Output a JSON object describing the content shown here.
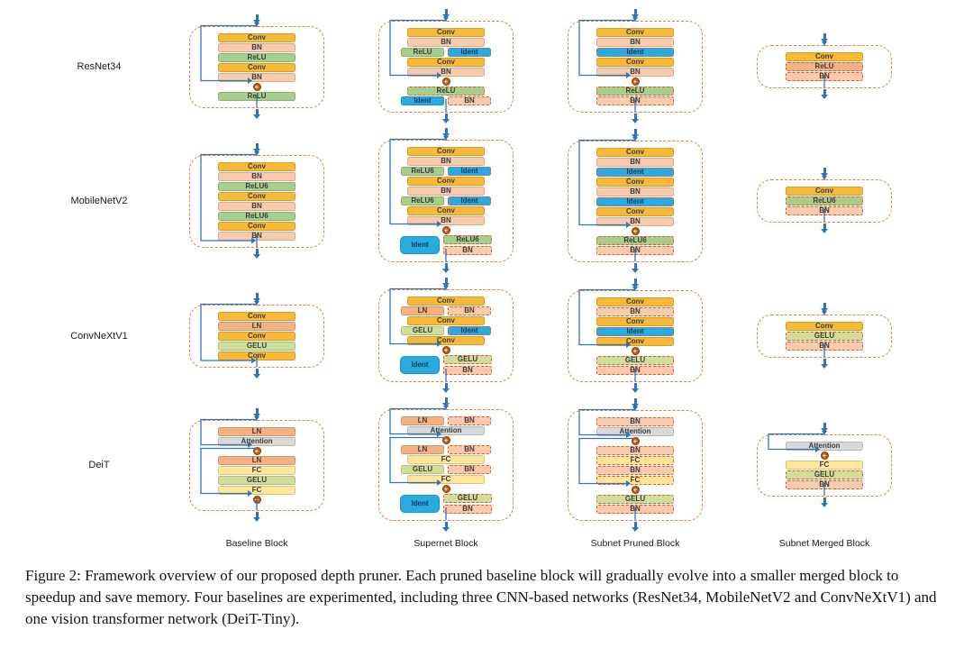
{
  "icons": {
    "plus": "+"
  },
  "colors": {
    "conv": "#F8BA36",
    "bn": "#F8CBAD",
    "relu": "#A6CE8D",
    "relu6": "#A6CE8D",
    "gelu": "#CFDE9B",
    "ln": "#F4B183",
    "fc": "#FFE699",
    "attn": "#D9D9D9",
    "ident": "#29ABE2",
    "container_border": "#ED7D31",
    "dashed_border": "#E2582C",
    "arrow": "#2E75B6",
    "skip": "#2E75B6",
    "add_fill": "#C55A11",
    "add_border": "#7F3E00"
  },
  "figure": {
    "rows": [
      {
        "label": "ResNet34",
        "blocks": [
          {
            "items": [
              {
                "t": "b",
                "l": "Conv",
                "c": "conv"
              },
              {
                "t": "b",
                "l": "BN",
                "c": "bn"
              },
              {
                "t": "b",
                "l": "ReLU",
                "c": "relu"
              },
              {
                "t": "b",
                "l": "Conv",
                "c": "conv"
              },
              {
                "t": "b",
                "l": "BN",
                "c": "bn"
              },
              {
                "t": "a"
              },
              {
                "t": "b",
                "l": "ReLU",
                "c": "relu"
              }
            ],
            "skips": [
              {
                "f": 0,
                "t": 5
              }
            ]
          },
          {
            "items": [
              {
                "t": "b",
                "l": "Conv",
                "c": "conv"
              },
              {
                "t": "b",
                "l": "BN",
                "c": "bn"
              },
              {
                "t": "p",
                "a": {
                  "l": "ReLU",
                  "c": "relu"
                },
                "b": {
                  "l": "Ident",
                  "c": "ident",
                  "d": 1
                }
              },
              {
                "t": "b",
                "l": "Conv",
                "c": "conv"
              },
              {
                "t": "b",
                "l": "BN",
                "c": "bn"
              },
              {
                "t": "a"
              },
              {
                "t": "b",
                "l": "ReLU",
                "c": "relu",
                "d": 1
              },
              {
                "t": "p",
                "a": {
                  "l": "Ident",
                  "c": "ident"
                },
                "b": {
                  "l": "BN",
                  "c": "bn",
                  "d": 1
                }
              }
            ],
            "skips": [
              {
                "f": 0,
                "t": 5
              }
            ]
          },
          {
            "items": [
              {
                "t": "b",
                "l": "Conv",
                "c": "conv"
              },
              {
                "t": "b",
                "l": "BN",
                "c": "bn"
              },
              {
                "t": "b",
                "l": "Ident",
                "c": "ident",
                "d": 1
              },
              {
                "t": "b",
                "l": "Conv",
                "c": "conv"
              },
              {
                "t": "b",
                "l": "BN",
                "c": "bn"
              },
              {
                "t": "a"
              },
              {
                "t": "b",
                "l": "ReLU",
                "c": "relu",
                "d": 1
              },
              {
                "t": "b",
                "l": "BN",
                "c": "bn",
                "d": 1
              }
            ],
            "skips": [
              {
                "f": 0,
                "t": 5
              }
            ]
          },
          {
            "items": [
              {
                "t": "b",
                "l": "Conv",
                "c": "conv"
              },
              {
                "t": "b",
                "l": "ReLU",
                "c": "ln",
                "d": 1
              },
              {
                "t": "b",
                "l": "BN",
                "c": "bn",
                "d": 1
              }
            ],
            "skips": []
          }
        ]
      },
      {
        "label": "MobileNetV2",
        "blocks": [
          {
            "items": [
              {
                "t": "b",
                "l": "Conv",
                "c": "conv"
              },
              {
                "t": "b",
                "l": "BN",
                "c": "bn"
              },
              {
                "t": "b",
                "l": "ReLU6",
                "c": "relu6"
              },
              {
                "t": "b",
                "l": "Conv",
                "c": "conv"
              },
              {
                "t": "b",
                "l": "BN",
                "c": "bn"
              },
              {
                "t": "b",
                "l": "ReLU6",
                "c": "relu6"
              },
              {
                "t": "b",
                "l": "Conv",
                "c": "conv"
              },
              {
                "t": "b",
                "l": "BN",
                "c": "bn"
              }
            ],
            "skips": [
              {
                "f": 0,
                "t": "out"
              }
            ]
          },
          {
            "items": [
              {
                "t": "b",
                "l": "Conv",
                "c": "conv"
              },
              {
                "t": "b",
                "l": "BN",
                "c": "bn"
              },
              {
                "t": "p",
                "a": {
                  "l": "ReLU6",
                  "c": "relu6"
                },
                "b": {
                  "l": "Ident",
                  "c": "ident",
                  "d": 1
                }
              },
              {
                "t": "b",
                "l": "Conv",
                "c": "conv"
              },
              {
                "t": "b",
                "l": "BN",
                "c": "bn"
              },
              {
                "t": "p",
                "a": {
                  "l": "ReLU6",
                  "c": "relu6"
                },
                "b": {
                  "l": "Ident",
                  "c": "ident",
                  "d": 1
                }
              },
              {
                "t": "b",
                "l": "Conv",
                "c": "conv"
              },
              {
                "t": "b",
                "l": "BN",
                "c": "bn"
              },
              {
                "t": "a"
              },
              {
                "t": "g",
                "a": {
                  "l": "Ident",
                  "c": "ident"
                },
                "b": [
                  {
                    "l": "ReLU6",
                    "c": "relu6",
                    "d": 1
                  },
                  {
                    "l": "BN",
                    "c": "bn",
                    "d": 1
                  }
                ]
              }
            ],
            "skips": [
              {
                "f": 0,
                "t": 8
              }
            ]
          },
          {
            "items": [
              {
                "t": "b",
                "l": "Conv",
                "c": "conv"
              },
              {
                "t": "b",
                "l": "BN",
                "c": "bn"
              },
              {
                "t": "b",
                "l": "Ident",
                "c": "ident",
                "d": 1
              },
              {
                "t": "b",
                "l": "Conv",
                "c": "conv"
              },
              {
                "t": "b",
                "l": "BN",
                "c": "bn"
              },
              {
                "t": "b",
                "l": "Ident",
                "c": "ident",
                "d": 1
              },
              {
                "t": "b",
                "l": "Conv",
                "c": "conv"
              },
              {
                "t": "b",
                "l": "BN",
                "c": "bn"
              },
              {
                "t": "a"
              },
              {
                "t": "b",
                "l": "ReLU6",
                "c": "relu6",
                "d": 1
              },
              {
                "t": "b",
                "l": "BN",
                "c": "bn",
                "d": 1
              }
            ],
            "skips": [
              {
                "f": 0,
                "t": 8
              }
            ]
          },
          {
            "items": [
              {
                "t": "b",
                "l": "Conv",
                "c": "conv"
              },
              {
                "t": "b",
                "l": "ReLU6",
                "c": "relu6",
                "d": 1
              },
              {
                "t": "b",
                "l": "BN",
                "c": "bn",
                "d": 1
              }
            ],
            "skips": []
          }
        ]
      },
      {
        "label": "ConvNeXtV1",
        "blocks": [
          {
            "items": [
              {
                "t": "b",
                "l": "Conv",
                "c": "conv"
              },
              {
                "t": "b",
                "l": "LN",
                "c": "ln"
              },
              {
                "t": "b",
                "l": "Conv",
                "c": "conv"
              },
              {
                "t": "b",
                "l": "GELU",
                "c": "gelu"
              },
              {
                "t": "b",
                "l": "Conv",
                "c": "conv"
              }
            ],
            "skips": [
              {
                "f": 0,
                "t": "out"
              }
            ]
          },
          {
            "items": [
              {
                "t": "b",
                "l": "Conv",
                "c": "conv"
              },
              {
                "t": "p",
                "a": {
                  "l": "LN",
                  "c": "ln"
                },
                "b": {
                  "l": "BN",
                  "c": "bn",
                  "d": 1
                }
              },
              {
                "t": "b",
                "l": "Conv",
                "c": "conv"
              },
              {
                "t": "p",
                "a": {
                  "l": "GELU",
                  "c": "gelu"
                },
                "b": {
                  "l": "Ident",
                  "c": "ident",
                  "d": 1
                }
              },
              {
                "t": "b",
                "l": "Conv",
                "c": "conv"
              },
              {
                "t": "a"
              },
              {
                "t": "g",
                "a": {
                  "l": "Ident",
                  "c": "ident"
                },
                "b": [
                  {
                    "l": "GELU",
                    "c": "gelu",
                    "d": 1
                  },
                  {
                    "l": "BN",
                    "c": "bn",
                    "d": 1
                  }
                ]
              }
            ],
            "skips": [
              {
                "f": 0,
                "t": 5
              }
            ]
          },
          {
            "items": [
              {
                "t": "b",
                "l": "Conv",
                "c": "conv"
              },
              {
                "t": "b",
                "l": "BN",
                "c": "bn",
                "d": 1
              },
              {
                "t": "b",
                "l": "Conv",
                "c": "conv"
              },
              {
                "t": "b",
                "l": "Ident",
                "c": "ident",
                "d": 1
              },
              {
                "t": "b",
                "l": "Conv",
                "c": "conv"
              },
              {
                "t": "a"
              },
              {
                "t": "b",
                "l": "GELU",
                "c": "gelu",
                "d": 1
              },
              {
                "t": "b",
                "l": "BN",
                "c": "bn",
                "d": 1
              }
            ],
            "skips": [
              {
                "f": 0,
                "t": 5
              }
            ]
          },
          {
            "items": [
              {
                "t": "b",
                "l": "Conv",
                "c": "conv"
              },
              {
                "t": "b",
                "l": "GELU",
                "c": "gelu",
                "d": 1
              },
              {
                "t": "b",
                "l": "BN",
                "c": "bn",
                "d": 1
              }
            ],
            "skips": []
          }
        ]
      },
      {
        "label": "DeiT",
        "blocks": [
          {
            "items": [
              {
                "t": "b",
                "l": "LN",
                "c": "ln"
              },
              {
                "t": "b",
                "l": "Attention",
                "c": "attn"
              },
              {
                "t": "a"
              },
              {
                "t": "b",
                "l": "LN",
                "c": "ln"
              },
              {
                "t": "b",
                "l": "FC",
                "c": "fc"
              },
              {
                "t": "b",
                "l": "GELU",
                "c": "gelu"
              },
              {
                "t": "b",
                "l": "FC",
                "c": "fc"
              },
              {
                "t": "a"
              }
            ],
            "skips": [
              {
                "f": 0,
                "t": 2
              },
              {
                "f": 3,
                "t": 7
              }
            ]
          },
          {
            "items": [
              {
                "t": "p",
                "a": {
                  "l": "LN",
                  "c": "ln"
                },
                "b": {
                  "l": "BN",
                  "c": "bn",
                  "d": 1
                }
              },
              {
                "t": "b",
                "l": "Attention",
                "c": "attn"
              },
              {
                "t": "a"
              },
              {
                "t": "p",
                "a": {
                  "l": "LN",
                  "c": "ln"
                },
                "b": {
                  "l": "BN",
                  "c": "bn",
                  "d": 1
                }
              },
              {
                "t": "b",
                "l": "FC",
                "c": "fc"
              },
              {
                "t": "p",
                "a": {
                  "l": "GELU",
                  "c": "gelu"
                },
                "b": {
                  "l": "BN",
                  "c": "bn",
                  "d": 1
                }
              },
              {
                "t": "b",
                "l": "FC",
                "c": "fc"
              },
              {
                "t": "a"
              },
              {
                "t": "g",
                "a": {
                  "l": "Ident",
                  "c": "ident"
                },
                "b": [
                  {
                    "l": "GELU",
                    "c": "gelu",
                    "d": 1
                  },
                  {
                    "l": "BN",
                    "c": "bn",
                    "d": 1
                  }
                ]
              }
            ],
            "skips": [
              {
                "f": 0,
                "t": 2
              },
              {
                "f": 3,
                "t": 7
              }
            ]
          },
          {
            "items": [
              {
                "t": "b",
                "l": "BN",
                "c": "bn",
                "d": 1
              },
              {
                "t": "b",
                "l": "Attention",
                "c": "attn"
              },
              {
                "t": "a"
              },
              {
                "t": "b",
                "l": "BN",
                "c": "bn",
                "d": 1
              },
              {
                "t": "b",
                "l": "FC",
                "c": "fc",
                "d": 1
              },
              {
                "t": "b",
                "l": "BN",
                "c": "bn",
                "d": 1
              },
              {
                "t": "b",
                "l": "FC",
                "c": "fc",
                "d": 1
              },
              {
                "t": "a"
              },
              {
                "t": "b",
                "l": "GELU",
                "c": "gelu",
                "d": 1
              },
              {
                "t": "b",
                "l": "BN",
                "c": "bn",
                "d": 1
              }
            ],
            "skips": [
              {
                "f": 0,
                "t": 2
              },
              {
                "f": 3,
                "t": 7
              }
            ]
          },
          {
            "items": [
              {
                "t": "b",
                "l": "Attention",
                "c": "attn"
              },
              {
                "t": "a"
              },
              {
                "t": "b",
                "l": "FC",
                "c": "fc"
              },
              {
                "t": "b",
                "l": "GELU",
                "c": "gelu",
                "d": 1
              },
              {
                "t": "b",
                "l": "BN",
                "c": "bn",
                "d": 1
              }
            ],
            "skips": [
              {
                "f": 0,
                "t": 1
              }
            ]
          }
        ]
      }
    ],
    "column_labels": [
      "Baseline Block",
      "Supernet Block",
      "Subnet Pruned Block",
      "Subnet Merged Block"
    ]
  },
  "caption": {
    "text": "Figure 2: Framework overview of our proposed depth pruner. Each pruned baseline block will gradually evolve into a smaller merged block to speedup and save memory. Four baselines are experimented, including three CNN-based networks (ResNet34, MobileNetV2 and ConvNeXtV1) and one vision transformer network (DeiT-Tiny)."
  }
}
